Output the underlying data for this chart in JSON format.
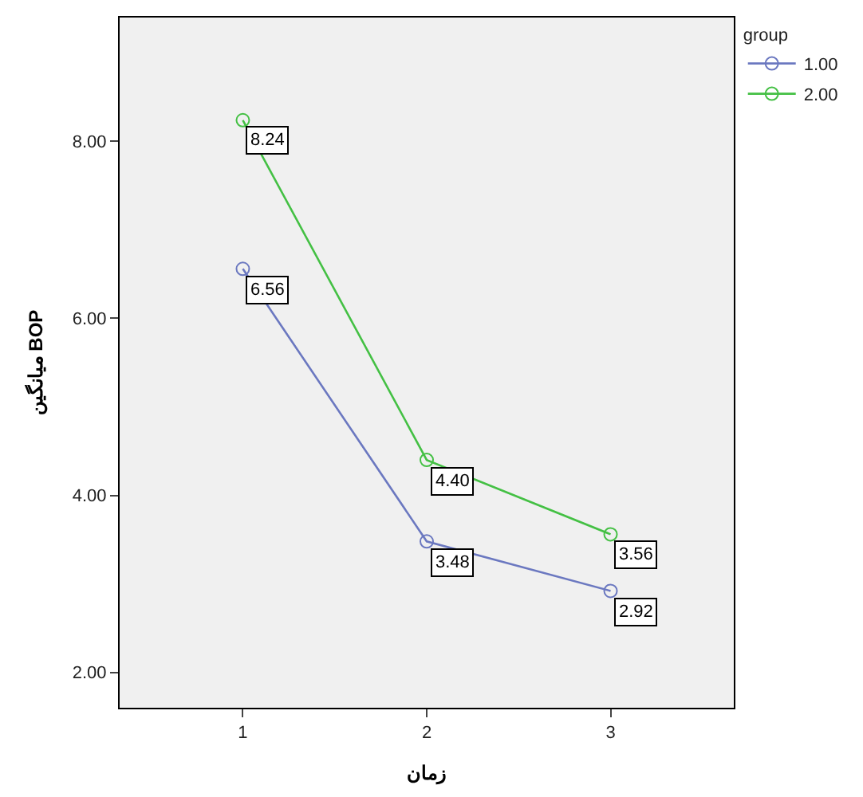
{
  "chart_data": {
    "type": "line",
    "xlabel": "زمان",
    "ylabel": "میانگین BOP",
    "legend_title": "group",
    "x": [
      1,
      2,
      3
    ],
    "xlim": [
      0.33,
      3.67
    ],
    "xticks": [
      1,
      2,
      3
    ],
    "ylim": [
      1.6,
      9.4
    ],
    "yticks": [
      {
        "value": 2,
        "label": "2.00"
      },
      {
        "value": 4,
        "label": "4.00"
      },
      {
        "value": 6,
        "label": "6.00"
      },
      {
        "value": 8,
        "label": "8.00"
      }
    ],
    "series": [
      {
        "name": "1.00",
        "color": "#6b78c0",
        "values": [
          6.56,
          3.48,
          2.92
        ],
        "value_labels": [
          "6.56",
          "3.48",
          "2.92"
        ]
      },
      {
        "name": "2.00",
        "color": "#44c044",
        "values": [
          8.24,
          4.4,
          3.56
        ],
        "value_labels": [
          "8.24",
          "4.40",
          "3.56"
        ]
      }
    ],
    "marker": "circle",
    "line_style": "solid",
    "grid": false,
    "legend": "top right"
  }
}
